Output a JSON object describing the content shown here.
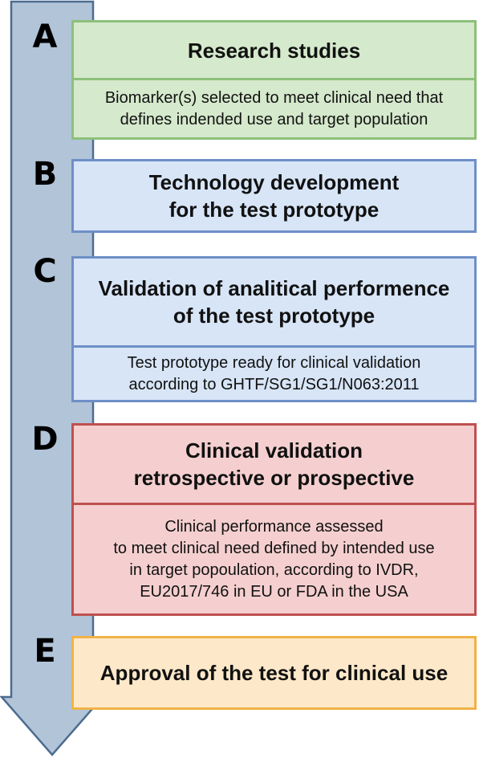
{
  "stages": [
    {
      "letter": "A",
      "title": "Research studies",
      "detail_lines": [
        "Biomarker(s) selected to meet clinical need that",
        "defines indended use and target population"
      ]
    },
    {
      "letter": "B",
      "title_lines": [
        "Technology development",
        "for the test prototype"
      ]
    },
    {
      "letter": "C",
      "title_lines": [
        "Validation of analitical performence",
        "of the test prototype"
      ],
      "detail_lines": [
        "Test prototype ready for clinical validation",
        "according to GHTF/SG1/SG1/N063:2011"
      ]
    },
    {
      "letter": "D",
      "title_lines": [
        "Clinical validation",
        "retrospective or prospective"
      ],
      "detail_lines": [
        "Clinical performance assessed",
        "to meet clinical need defined by intended use",
        "in target popoulation, according to IVDR,",
        "EU2017/746 in EU or FDA in the USA"
      ]
    },
    {
      "letter": "E",
      "title": "Approval of the test for clinical use"
    }
  ],
  "colors": {
    "arrow_fill": "#b2c4d8",
    "arrow_stroke": "#4d6c8f",
    "research": "#d5e9cc",
    "development": "#d7e5f7",
    "clinical": "#f5cfcf",
    "approval": "#fde9c9"
  }
}
